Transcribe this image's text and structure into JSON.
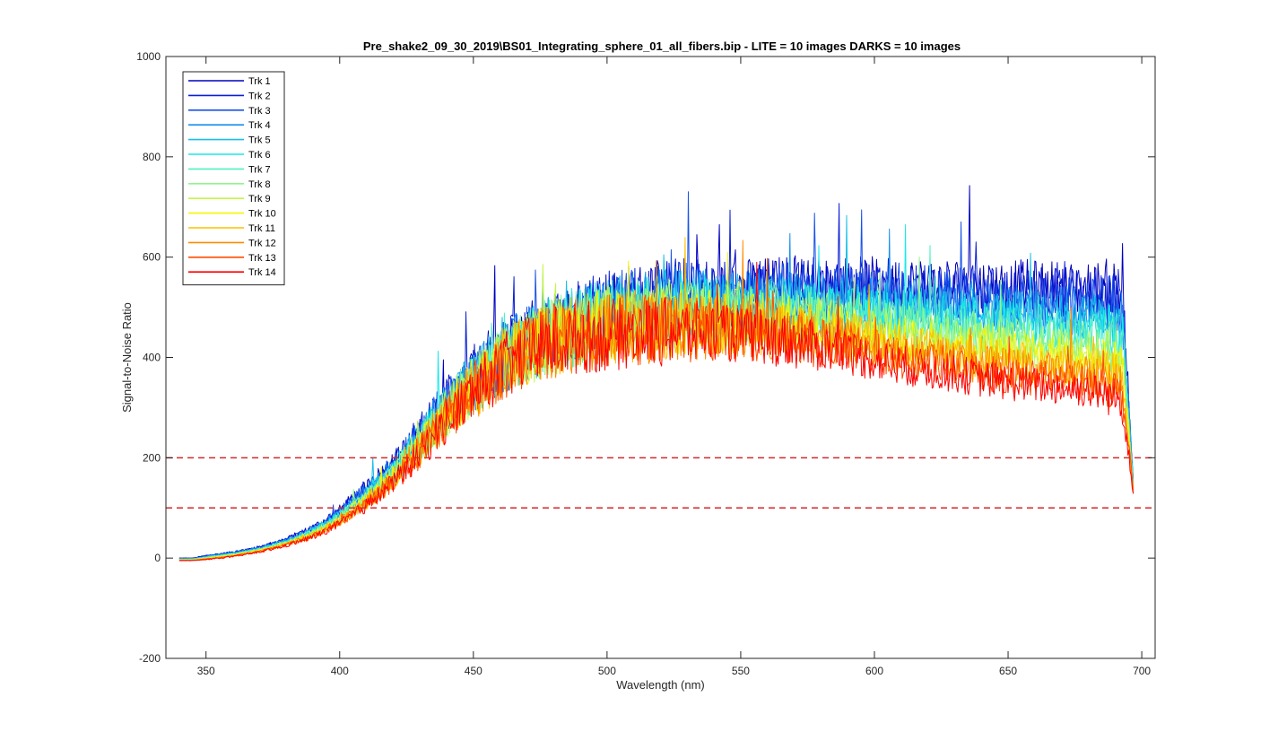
{
  "chart_data": {
    "type": "line",
    "title": "Pre_shake2_09_30_2019\\BS01_Integrating_sphere_01_all_fibers.bip - LITE =  10 images  DARKS = 10 images",
    "xlabel": "Wavelength (nm)",
    "ylabel": "Signal-to-Noise Ratio",
    "xlim": [
      335,
      705
    ],
    "ylim": [
      -200,
      1000
    ],
    "xticks": [
      350,
      400,
      450,
      500,
      550,
      600,
      650,
      700
    ],
    "yticks": [
      -200,
      0,
      200,
      400,
      600,
      800,
      1000
    ],
    "xtick_labels": [
      "350",
      "400",
      "450",
      "500",
      "550",
      "600",
      "650",
      "700"
    ],
    "ytick_labels": [
      "-200",
      "0",
      "200",
      "400",
      "600",
      "800",
      "1000"
    ],
    "grid": false,
    "legend_position": "top-left",
    "envelope": {
      "x": [
        340,
        345,
        350,
        360,
        370,
        380,
        390,
        400,
        410,
        420,
        430,
        440,
        450,
        460,
        470,
        480,
        490,
        500,
        510,
        520,
        530,
        540,
        550,
        560,
        570,
        580,
        590,
        600,
        610,
        620,
        630,
        640,
        650,
        660,
        670,
        680,
        690,
        693,
        695,
        697
      ],
      "track1_mean": [
        0,
        0,
        5,
        12,
        22,
        38,
        60,
        95,
        140,
        185,
        250,
        310,
        360,
        400,
        435,
        460,
        480,
        500,
        510,
        520,
        525,
        530,
        532,
        535,
        540,
        540,
        542,
        545,
        545,
        545,
        545,
        542,
        540,
        540,
        538,
        535,
        535,
        520,
        320,
        130
      ],
      "track14_mean": [
        -5,
        -5,
        -3,
        3,
        12,
        25,
        42,
        68,
        105,
        150,
        210,
        275,
        330,
        375,
        410,
        430,
        440,
        445,
        448,
        450,
        450,
        448,
        445,
        440,
        430,
        420,
        410,
        395,
        385,
        375,
        368,
        358,
        350,
        345,
        340,
        335,
        320,
        300,
        220,
        120
      ],
      "noise_fraction": [
        0.02,
        0.02,
        0.05,
        0.06,
        0.07,
        0.08,
        0.1,
        0.1,
        0.12,
        0.13,
        0.15,
        0.16,
        0.17,
        0.17,
        0.17,
        0.17,
        0.16,
        0.16,
        0.15,
        0.15,
        0.14,
        0.13,
        0.12,
        0.12,
        0.12,
        0.11,
        0.11,
        0.1,
        0.1,
        0.1,
        0.1,
        0.1,
        0.1,
        0.1,
        0.1,
        0.1,
        0.12,
        0.12,
        0.1,
        0.05
      ]
    },
    "reference_lines": [
      {
        "y": 200,
        "color": "#d62728",
        "style": "dashed"
      },
      {
        "y": 100,
        "color": "#d62728",
        "style": "dashed"
      }
    ],
    "series": [
      {
        "name": "Trk 1",
        "color": "#0000bf"
      },
      {
        "name": "Trk 2",
        "color": "#0a1fd6"
      },
      {
        "name": "Trk 3",
        "color": "#1a52e8"
      },
      {
        "name": "Trk 4",
        "color": "#1a8ef0"
      },
      {
        "name": "Trk 5",
        "color": "#19bfe8"
      },
      {
        "name": "Trk 6",
        "color": "#19e8e8"
      },
      {
        "name": "Trk 7",
        "color": "#4ff0c4"
      },
      {
        "name": "Trk 8",
        "color": "#8ff58f"
      },
      {
        "name": "Trk 9",
        "color": "#c4f54a"
      },
      {
        "name": "Trk 10",
        "color": "#f5f500"
      },
      {
        "name": "Trk 11",
        "color": "#ffbf00"
      },
      {
        "name": "Trk 12",
        "color": "#ff8c00"
      },
      {
        "name": "Trk 13",
        "color": "#ff4d00"
      },
      {
        "name": "Trk 14",
        "color": "#ff0000"
      }
    ]
  }
}
